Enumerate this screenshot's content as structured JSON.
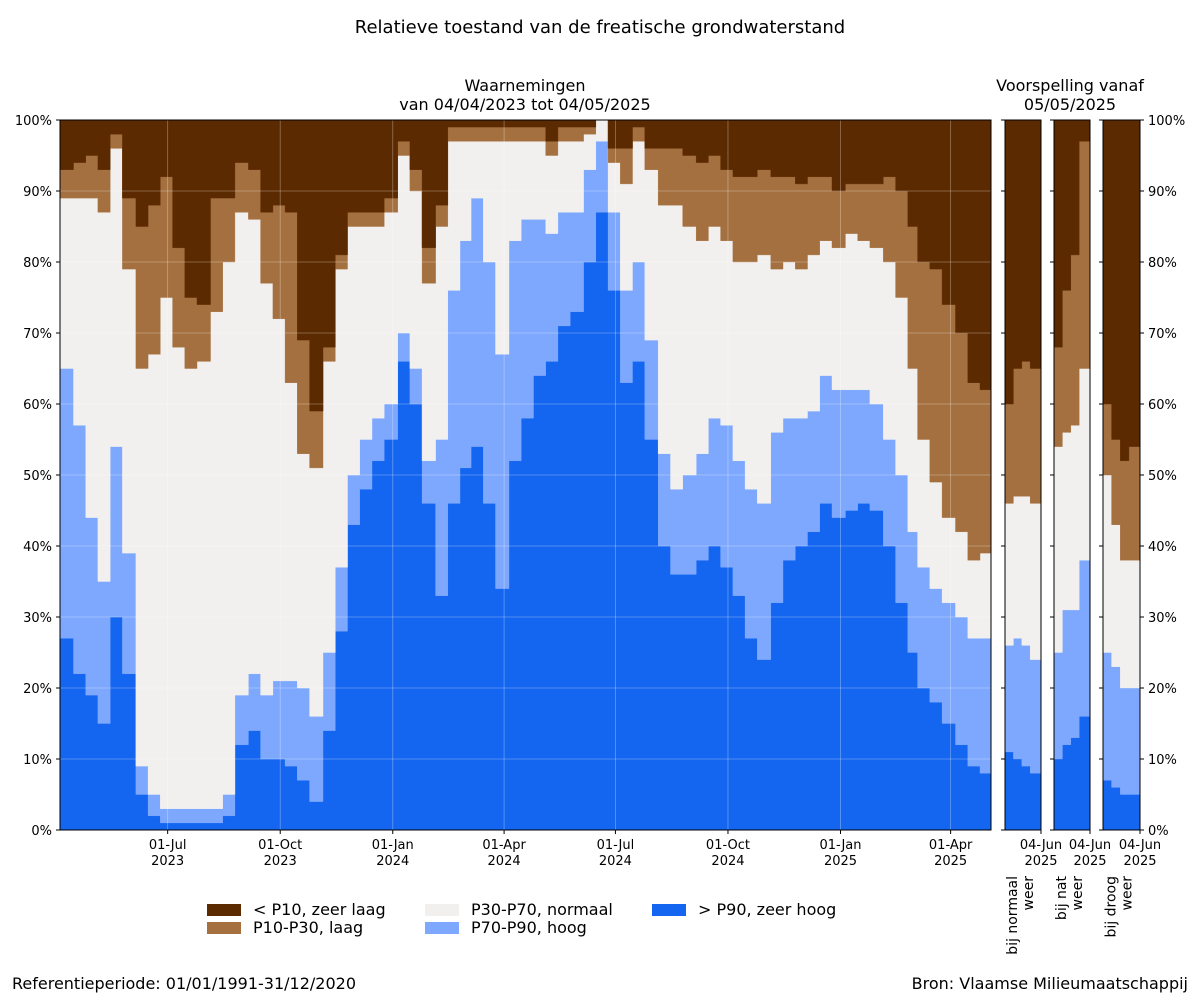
{
  "titles": {
    "main": "Relatieve toestand van de freatische grondwaterstand",
    "observations_line1": "Waarnemingen",
    "observations_line2": "van 04/04/2023 tot 04/05/2025",
    "forecast_line1": "Voorspelling vanaf",
    "forecast_line2": "05/05/2025"
  },
  "footer": {
    "reference": "Referentieperiode: 01/01/1991-31/12/2020",
    "source": "Bron: Vlaamse Milieumaatschappij"
  },
  "colors": {
    "p10": "#5c2a00",
    "p10_30": "#a5703f",
    "p30_70": "#f2f0ef",
    "p70_90": "#7da8fe",
    "p90": "#1465ef",
    "grid": "#d8d8d8"
  },
  "legend": [
    {
      "label": "< P10, zeer laag",
      "color_key": "p10"
    },
    {
      "label": "P10-P30, laag",
      "color_key": "p10_30"
    },
    {
      "label": "P30-P70, normaal",
      "color_key": "p30_70"
    },
    {
      "label": "P70-P90, hoog",
      "color_key": "p70_90"
    },
    {
      "label": "> P90, zeer hoog",
      "color_key": "p90"
    }
  ],
  "chart_data": [
    {
      "type": "area",
      "name": "observations",
      "stacked": true,
      "ylim": [
        0,
        100
      ],
      "yticks": [
        "0%",
        "10%",
        "20%",
        "30%",
        "40%",
        "50%",
        "60%",
        "70%",
        "80%",
        "90%",
        "100%"
      ],
      "xlim": [
        "2023-04-04",
        "2025-05-04"
      ],
      "xticks": [
        {
          "date": "2023-07-01",
          "label1": "01-Jul",
          "label2": "2023"
        },
        {
          "date": "2023-10-01",
          "label1": "01-Oct",
          "label2": "2023"
        },
        {
          "date": "2024-01-01",
          "label1": "01-Jan",
          "label2": "2024"
        },
        {
          "date": "2024-04-01",
          "label1": "01-Apr",
          "label2": "2024"
        },
        {
          "date": "2024-07-01",
          "label1": "01-Jul",
          "label2": "2024"
        },
        {
          "date": "2024-10-01",
          "label1": "01-Oct",
          "label2": "2024"
        },
        {
          "date": "2025-01-01",
          "label1": "01-Jan",
          "label2": "2025"
        },
        {
          "date": "2025-04-01",
          "label1": "01-Apr",
          "label2": "2025"
        }
      ],
      "grid": true,
      "x": [
        "2023-04-04",
        "2023-04-15",
        "2023-04-25",
        "2023-05-05",
        "2023-05-15",
        "2023-05-25",
        "2023-06-05",
        "2023-06-15",
        "2023-06-25",
        "2023-07-05",
        "2023-07-15",
        "2023-07-25",
        "2023-08-05",
        "2023-08-15",
        "2023-08-25",
        "2023-09-05",
        "2023-09-15",
        "2023-09-25",
        "2023-10-05",
        "2023-10-15",
        "2023-10-25",
        "2023-11-05",
        "2023-11-15",
        "2023-11-25",
        "2023-12-05",
        "2023-12-15",
        "2023-12-25",
        "2024-01-05",
        "2024-01-15",
        "2024-01-25",
        "2024-02-05",
        "2024-02-15",
        "2024-02-25",
        "2024-03-05",
        "2024-03-15",
        "2024-03-25",
        "2024-04-05",
        "2024-04-15",
        "2024-04-25",
        "2024-05-05",
        "2024-05-15",
        "2024-05-25",
        "2024-06-05",
        "2024-06-15",
        "2024-06-25",
        "2024-07-05",
        "2024-07-15",
        "2024-07-25",
        "2024-08-05",
        "2024-08-15",
        "2024-08-25",
        "2024-09-05",
        "2024-09-15",
        "2024-09-25",
        "2024-10-05",
        "2024-10-15",
        "2024-10-25",
        "2024-11-05",
        "2024-11-15",
        "2024-11-25",
        "2024-12-05",
        "2024-12-15",
        "2024-12-25",
        "2025-01-05",
        "2025-01-15",
        "2025-01-25",
        "2025-02-05",
        "2025-02-15",
        "2025-02-25",
        "2025-03-05",
        "2025-03-15",
        "2025-03-25",
        "2025-04-05",
        "2025-04-15",
        "2025-04-25",
        "2025-05-04"
      ],
      "series": [
        {
          "name": "> P90, zeer hoog",
          "color_key": "p90",
          "values": [
            27,
            22,
            19,
            15,
            30,
            22,
            5,
            2,
            1,
            1,
            1,
            1,
            1,
            2,
            12,
            14,
            10,
            10,
            9,
            7,
            4,
            14,
            28,
            43,
            48,
            52,
            55,
            66,
            60,
            46,
            33,
            46,
            51,
            54,
            46,
            34,
            52,
            58,
            64,
            66,
            71,
            73,
            80,
            87,
            76,
            63,
            66,
            55,
            40,
            36,
            36,
            38,
            40,
            37,
            33,
            27,
            24,
            32,
            38,
            40,
            42,
            46,
            44,
            45,
            46,
            45,
            40,
            32,
            25,
            20,
            18,
            15,
            12,
            9,
            8,
            7
          ]
        },
        {
          "name": "P70-P90, hoog",
          "color_key": "p70_90",
          "values": [
            38,
            35,
            25,
            20,
            24,
            17,
            4,
            3,
            2,
            2,
            2,
            2,
            2,
            3,
            7,
            8,
            9,
            11,
            12,
            13,
            12,
            11,
            9,
            7,
            7,
            6,
            5,
            4,
            5,
            6,
            22,
            30,
            32,
            35,
            34,
            33,
            31,
            28,
            22,
            18,
            16,
            14,
            13,
            10,
            11,
            13,
            14,
            14,
            13,
            12,
            14,
            15,
            18,
            20,
            19,
            21,
            22,
            24,
            20,
            18,
            17,
            18,
            18,
            17,
            16,
            15,
            15,
            18,
            17,
            17,
            16,
            17,
            18,
            18,
            19,
            19
          ]
        },
        {
          "name": "P30-P70, normaal",
          "color_key": "p30_70",
          "values": [
            24,
            32,
            45,
            52,
            42,
            40,
            56,
            62,
            72,
            65,
            62,
            63,
            70,
            75,
            68,
            64,
            58,
            51,
            42,
            33,
            35,
            41,
            42,
            35,
            30,
            27,
            27,
            25,
            25,
            25,
            30,
            21,
            14,
            8,
            17,
            30,
            14,
            11,
            11,
            11,
            10,
            10,
            5,
            3,
            7,
            15,
            17,
            24,
            35,
            40,
            35,
            30,
            27,
            26,
            28,
            32,
            35,
            23,
            22,
            21,
            22,
            19,
            20,
            22,
            21,
            22,
            25,
            25,
            23,
            18,
            15,
            12,
            12,
            11,
            12,
            13
          ]
        },
        {
          "name": "P10-P30, laag",
          "color_key": "p10_30",
          "values": [
            4,
            5,
            6,
            6,
            2,
            10,
            20,
            21,
            17,
            14,
            10,
            8,
            16,
            9,
            7,
            7,
            10,
            16,
            24,
            16,
            8,
            2,
            2,
            2,
            2,
            2,
            2,
            2,
            3,
            5,
            3,
            2,
            2,
            2,
            2,
            2,
            2,
            2,
            2,
            2,
            2,
            2,
            1,
            0,
            2,
            5,
            2,
            3,
            8,
            8,
            10,
            11,
            10,
            10,
            12,
            12,
            12,
            13,
            12,
            12,
            11,
            9,
            8,
            7,
            8,
            9,
            12,
            15,
            20,
            25,
            30,
            30,
            28,
            25,
            23,
            22
          ]
        },
        {
          "name": "< P10, zeer laag",
          "color_key": "p10",
          "values": [
            7,
            6,
            5,
            7,
            2,
            11,
            15,
            12,
            8,
            18,
            25,
            26,
            11,
            11,
            6,
            7,
            13,
            12,
            13,
            31,
            41,
            32,
            19,
            13,
            13,
            13,
            11,
            3,
            7,
            18,
            12,
            1,
            1,
            1,
            1,
            1,
            1,
            1,
            1,
            3,
            1,
            1,
            1,
            0,
            4,
            4,
            1,
            4,
            4,
            4,
            5,
            6,
            5,
            7,
            8,
            8,
            7,
            8,
            8,
            9,
            8,
            8,
            10,
            9,
            9,
            9,
            8,
            10,
            15,
            20,
            21,
            26,
            30,
            37,
            38,
            39
          ]
        }
      ]
    },
    {
      "type": "area",
      "name": "forecast-normaal",
      "stacked": true,
      "ylim": [
        0,
        100
      ],
      "x": [
        "2025-05-05",
        "2025-05-12",
        "2025-05-19",
        "2025-05-26",
        "2025-06-04"
      ],
      "xticks": [
        {
          "date": "2025-06-04",
          "label1": "04-Jun",
          "label2": "2025"
        }
      ],
      "panel_label_line1": "bij normaal",
      "panel_label_line2": "weer",
      "series": [
        {
          "name": "> P90, zeer hoog",
          "color_key": "p90",
          "values": [
            11,
            10,
            9,
            8,
            5
          ]
        },
        {
          "name": "P70-P90, hoog",
          "color_key": "p70_90",
          "values": [
            15,
            17,
            17,
            16,
            14
          ]
        },
        {
          "name": "P30-P70, normaal",
          "color_key": "p30_70",
          "values": [
            20,
            20,
            21,
            22,
            22
          ]
        },
        {
          "name": "P10-P30, laag",
          "color_key": "p10_30",
          "values": [
            14,
            18,
            19,
            19,
            20
          ]
        },
        {
          "name": "< P10, zeer laag",
          "color_key": "p10",
          "values": [
            40,
            35,
            34,
            35,
            39
          ]
        }
      ]
    },
    {
      "type": "area",
      "name": "forecast-nat",
      "stacked": true,
      "ylim": [
        0,
        100
      ],
      "x": [
        "2025-05-05",
        "2025-05-12",
        "2025-05-19",
        "2025-05-26",
        "2025-06-04"
      ],
      "xticks": [
        {
          "date": "2025-06-04",
          "label1": "04-Jun",
          "label2": "2025"
        }
      ],
      "panel_label_line1": "bij nat",
      "panel_label_line2": "weer",
      "series": [
        {
          "name": "> P90, zeer hoog",
          "color_key": "p90",
          "values": [
            10,
            12,
            13,
            16,
            12
          ]
        },
        {
          "name": "P70-P90, hoog",
          "color_key": "p70_90",
          "values": [
            15,
            19,
            18,
            22,
            21
          ]
        },
        {
          "name": "P30-P70, normaal",
          "color_key": "p30_70",
          "values": [
            29,
            25,
            26,
            27,
            35
          ]
        },
        {
          "name": "P10-P30, laag",
          "color_key": "p10_30",
          "values": [
            14,
            20,
            24,
            32,
            24
          ]
        },
        {
          "name": "< P10, zeer laag",
          "color_key": "p10",
          "values": [
            32,
            24,
            19,
            3,
            8
          ]
        }
      ]
    },
    {
      "type": "area",
      "name": "forecast-droog",
      "stacked": true,
      "ylim": [
        0,
        100
      ],
      "x": [
        "2025-05-05",
        "2025-05-12",
        "2025-05-19",
        "2025-05-26",
        "2025-06-04"
      ],
      "xticks": [
        {
          "date": "2025-06-04",
          "label1": "04-Jun",
          "label2": "2025"
        }
      ],
      "panel_label_line1": "bij droog",
      "panel_label_line2": "weer",
      "series": [
        {
          "name": "> P90, zeer hoog",
          "color_key": "p90",
          "values": [
            7,
            6,
            5,
            5,
            4
          ]
        },
        {
          "name": "P70-P90, hoog",
          "color_key": "p70_90",
          "values": [
            18,
            17,
            15,
            15,
            14
          ]
        },
        {
          "name": "P30-P70, normaal",
          "color_key": "p30_70",
          "values": [
            25,
            20,
            18,
            18,
            20
          ]
        },
        {
          "name": "P10-P30, laag",
          "color_key": "p10_30",
          "values": [
            10,
            12,
            14,
            16,
            18
          ]
        },
        {
          "name": "< P10, zeer laag",
          "color_key": "p10",
          "values": [
            40,
            45,
            48,
            46,
            44
          ]
        }
      ]
    }
  ]
}
